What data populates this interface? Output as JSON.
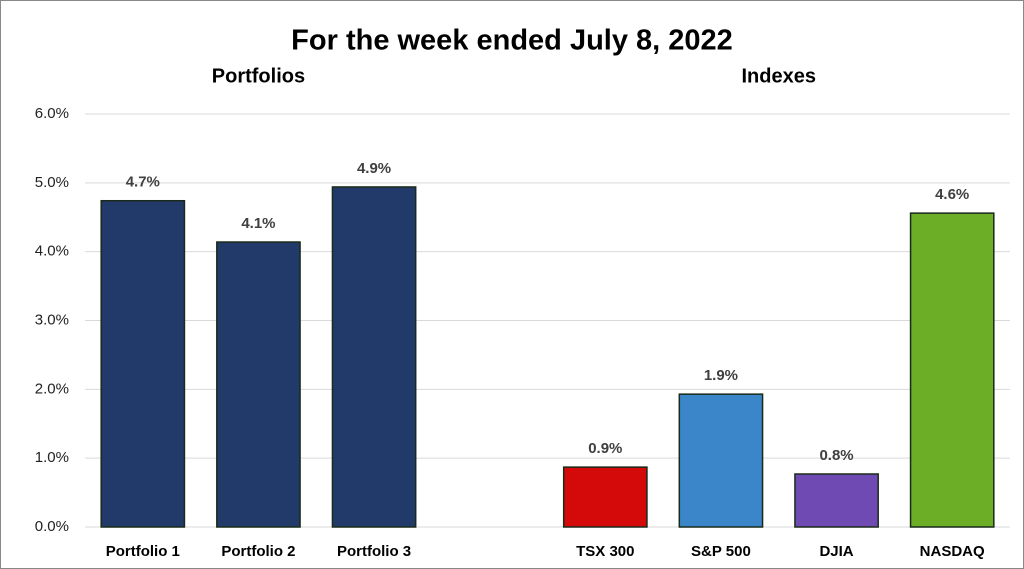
{
  "chart_data": {
    "type": "bar",
    "title": "For the week ended July 8, 2022",
    "group_labels": [
      "Portfolios",
      "Indexes"
    ],
    "categories": [
      "Portfolio 1",
      "Portfolio 2",
      "Portfolio 3",
      null,
      "TSX 300",
      "S&P 500",
      "DJIA",
      "NASDAQ"
    ],
    "values": [
      4.74,
      4.14,
      4.94,
      null,
      0.87,
      1.93,
      0.77,
      4.56
    ],
    "value_labels": [
      "4.7%",
      "4.1%",
      "4.9%",
      null,
      "0.9%",
      "1.9%",
      "0.8%",
      "4.6%"
    ],
    "colors": [
      "#223a6a",
      "#223a6a",
      "#223a6a",
      null,
      "#d40a0a",
      "#3b86c8",
      "#6f4ab3",
      "#6cae26"
    ],
    "ylim": [
      0,
      6
    ],
    "yticks": [
      {
        "value": 0,
        "label": "0.0%"
      },
      {
        "value": 1,
        "label": "1.0%"
      },
      {
        "value": 2,
        "label": "2.0%"
      },
      {
        "value": 3,
        "label": "3.0%"
      },
      {
        "value": 4,
        "label": "4.0%"
      },
      {
        "value": 5,
        "label": "5.0%"
      },
      {
        "value": 6,
        "label": "6.0%"
      }
    ],
    "grid": true
  }
}
